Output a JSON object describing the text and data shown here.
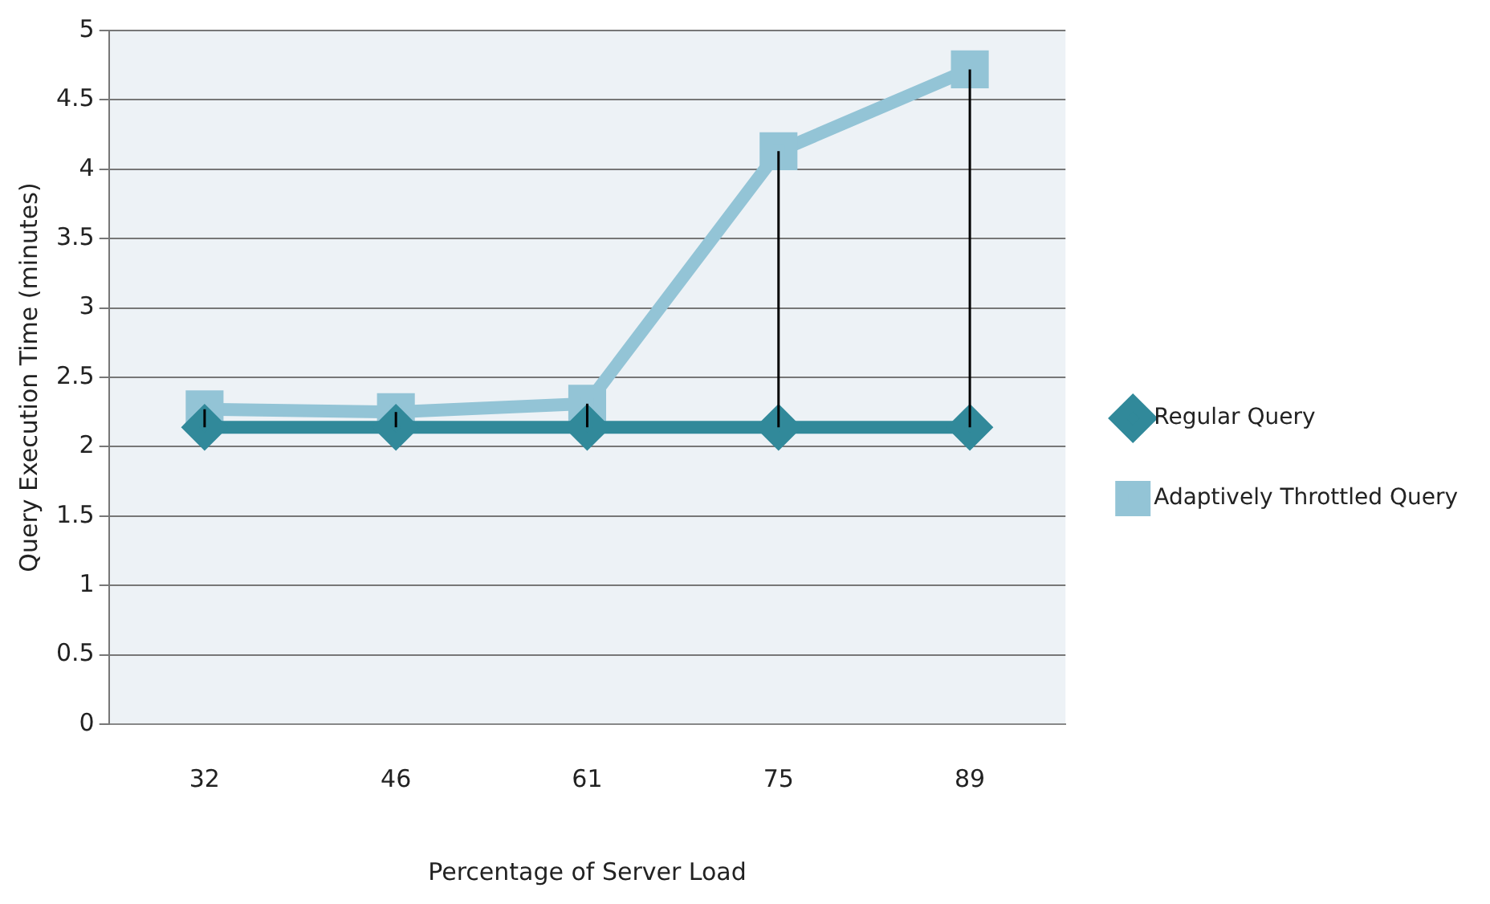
{
  "chart_data": {
    "type": "line",
    "xlabel": "Percentage of Server Load",
    "ylabel": "Query Execution Time (minutes)",
    "categories": [
      "32",
      "46",
      "61",
      "75",
      "89"
    ],
    "series": [
      {
        "name": "Regular Query",
        "color": "#31899a",
        "marker": "diamond",
        "values": [
          2.14,
          2.14,
          2.14,
          2.14,
          2.14
        ],
        "errors": [
          [
            2.14,
            2.27
          ],
          [
            2.14,
            2.25
          ],
          [
            2.14,
            2.31
          ],
          [
            2.14,
            4.13
          ],
          [
            2.14,
            4.72
          ]
        ]
      },
      {
        "name": "Adaptively Throttled Query",
        "color": "#93c4d6",
        "marker": "square",
        "values": [
          2.27,
          2.25,
          2.31,
          4.13,
          4.72
        ]
      }
    ],
    "ylim": [
      0,
      5
    ],
    "yticks": [
      0,
      0.5,
      1,
      1.5,
      2,
      2.5,
      3,
      3.5,
      4,
      4.5,
      5
    ],
    "grid": "y",
    "legend": "right"
  }
}
